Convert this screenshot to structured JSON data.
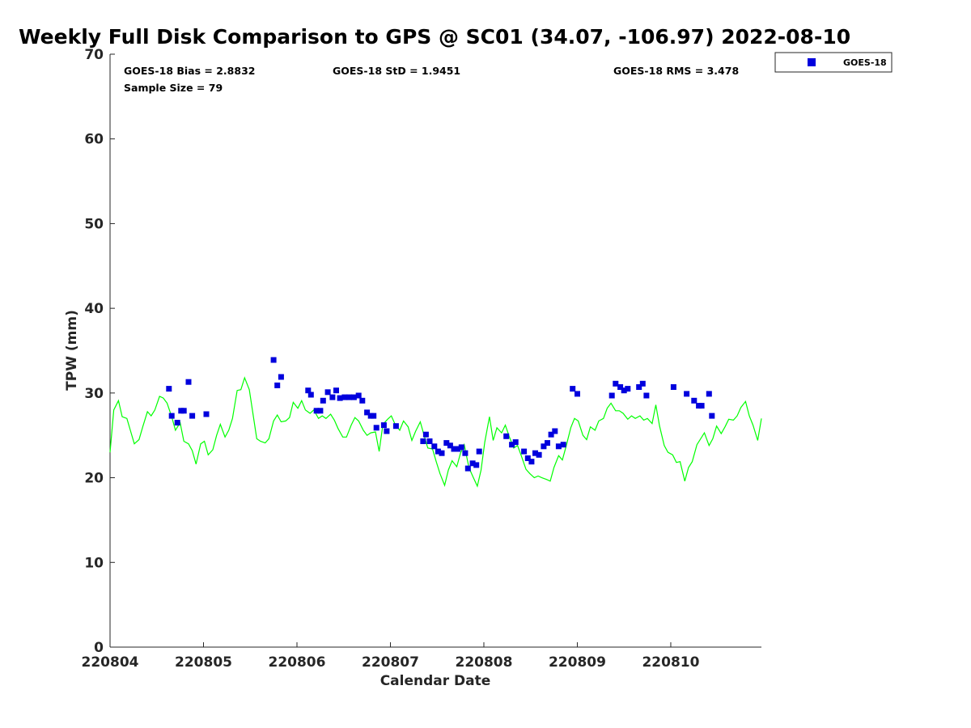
{
  "chart_data": {
    "type": "scatter",
    "title": "Weekly Full Disk Comparison to GPS @ SC01 (34.07, -106.97) 2022-08-10",
    "xlabel": "Calendar Date",
    "ylabel": "TPW (mm)",
    "x_tick_labels": [
      "220804",
      "220805",
      "220806",
      "220807",
      "220808",
      "220809",
      "220810"
    ],
    "x_tick_values": [
      220804,
      220805,
      220806,
      220807,
      220808,
      220809,
      220810
    ],
    "xlim": [
      220804,
      220810.97
    ],
    "ylim": [
      0,
      70
    ],
    "y_ticks": [
      0,
      10,
      20,
      30,
      40,
      50,
      60,
      70
    ],
    "y_tick_labels": [
      "0",
      "10",
      "20",
      "30",
      "40",
      "50",
      "60",
      "70"
    ],
    "grid": false,
    "legend_position": "top-right-outside",
    "stats": {
      "bias": "GOES-18 Bias = 2.8832",
      "std": "GOES-18 StD = 1.9451",
      "rms": "GOES-18 RMS = 3.478",
      "sample": "Sample Size = 79"
    },
    "series": [
      {
        "name": "GOES-18",
        "marker": "square",
        "color": "#0000dd",
        "points": [
          [
            220804.63,
            30.5
          ],
          [
            220804.66,
            27.3
          ],
          [
            220804.72,
            26.5
          ],
          [
            220804.76,
            27.9
          ],
          [
            220804.79,
            27.9
          ],
          [
            220804.84,
            31.3
          ],
          [
            220804.88,
            27.3
          ],
          [
            220805.03,
            27.5
          ],
          [
            220805.75,
            33.9
          ],
          [
            220805.79,
            30.9
          ],
          [
            220805.83,
            31.9
          ],
          [
            220806.12,
            30.3
          ],
          [
            220806.15,
            29.8
          ],
          [
            220806.21,
            27.9
          ],
          [
            220806.25,
            27.9
          ],
          [
            220806.28,
            29.1
          ],
          [
            220806.33,
            30.1
          ],
          [
            220806.38,
            29.5
          ],
          [
            220806.42,
            30.3
          ],
          [
            220806.46,
            29.4
          ],
          [
            220806.51,
            29.5
          ],
          [
            220806.56,
            29.5
          ],
          [
            220806.61,
            29.5
          ],
          [
            220806.66,
            29.7
          ],
          [
            220806.7,
            29.1
          ],
          [
            220806.75,
            27.7
          ],
          [
            220806.79,
            27.3
          ],
          [
            220806.82,
            27.3
          ],
          [
            220806.85,
            25.9
          ],
          [
            220806.93,
            26.2
          ],
          [
            220806.96,
            25.5
          ],
          [
            220807.06,
            26.1
          ],
          [
            220807.35,
            24.3
          ],
          [
            220807.38,
            25.1
          ],
          [
            220807.42,
            24.3
          ],
          [
            220807.47,
            23.7
          ],
          [
            220807.51,
            23.1
          ],
          [
            220807.55,
            22.9
          ],
          [
            220807.6,
            24.1
          ],
          [
            220807.64,
            23.8
          ],
          [
            220807.68,
            23.4
          ],
          [
            220807.72,
            23.4
          ],
          [
            220807.76,
            23.6
          ],
          [
            220807.8,
            22.9
          ],
          [
            220807.83,
            21.1
          ],
          [
            220807.88,
            21.7
          ],
          [
            220807.92,
            21.5
          ],
          [
            220807.95,
            23.1
          ],
          [
            220808.24,
            24.9
          ],
          [
            220808.3,
            23.9
          ],
          [
            220808.34,
            24.2
          ],
          [
            220808.43,
            23.1
          ],
          [
            220808.47,
            22.3
          ],
          [
            220808.51,
            21.9
          ],
          [
            220808.55,
            22.9
          ],
          [
            220808.59,
            22.7
          ],
          [
            220808.64,
            23.7
          ],
          [
            220808.68,
            24.1
          ],
          [
            220808.72,
            25.1
          ],
          [
            220808.76,
            25.5
          ],
          [
            220808.8,
            23.7
          ],
          [
            220808.85,
            23.9
          ],
          [
            220808.95,
            30.5
          ],
          [
            220809.0,
            29.9
          ],
          [
            220809.37,
            29.7
          ],
          [
            220809.41,
            31.1
          ],
          [
            220809.46,
            30.7
          ],
          [
            220809.5,
            30.3
          ],
          [
            220809.54,
            30.5
          ],
          [
            220809.66,
            30.7
          ],
          [
            220809.7,
            31.1
          ],
          [
            220809.74,
            29.7
          ],
          [
            220810.03,
            30.7
          ],
          [
            220810.17,
            29.9
          ],
          [
            220810.25,
            29.1
          ],
          [
            220810.3,
            28.5
          ],
          [
            220810.33,
            28.5
          ],
          [
            220810.41,
            29.9
          ],
          [
            220810.44,
            27.3
          ]
        ]
      },
      {
        "name": "GPS",
        "type": "line",
        "color": "#00ff00",
        "points": [
          [
            220804.0,
            23.0
          ],
          [
            220804.04,
            28.0
          ],
          [
            220804.09,
            29.1
          ],
          [
            220804.13,
            27.2
          ],
          [
            220804.18,
            27.0
          ],
          [
            220804.22,
            25.5
          ],
          [
            220804.26,
            24.0
          ],
          [
            220804.31,
            24.5
          ],
          [
            220804.35,
            26.0
          ],
          [
            220804.4,
            27.8
          ],
          [
            220804.44,
            27.3
          ],
          [
            220804.48,
            28.0
          ],
          [
            220804.53,
            29.6
          ],
          [
            220804.57,
            29.4
          ],
          [
            220804.61,
            28.8
          ],
          [
            220804.66,
            27.2
          ],
          [
            220804.7,
            25.6
          ],
          [
            220804.75,
            26.5
          ],
          [
            220804.79,
            24.3
          ],
          [
            220804.84,
            24.0
          ],
          [
            220804.88,
            23.2
          ],
          [
            220804.92,
            21.6
          ],
          [
            220804.97,
            24.0
          ],
          [
            220805.01,
            24.3
          ],
          [
            220805.05,
            22.7
          ],
          [
            220805.1,
            23.3
          ],
          [
            220805.14,
            25.0
          ],
          [
            220805.18,
            26.3
          ],
          [
            220805.23,
            24.8
          ],
          [
            220805.27,
            25.6
          ],
          [
            220805.31,
            27.0
          ],
          [
            220805.36,
            30.3
          ],
          [
            220805.4,
            30.4
          ],
          [
            220805.44,
            31.8
          ],
          [
            220805.49,
            30.4
          ],
          [
            220805.53,
            27.5
          ],
          [
            220805.57,
            24.6
          ],
          [
            220805.61,
            24.3
          ],
          [
            220805.66,
            24.1
          ],
          [
            220805.7,
            24.6
          ],
          [
            220805.75,
            26.7
          ],
          [
            220805.79,
            27.4
          ],
          [
            220805.83,
            26.6
          ],
          [
            220805.88,
            26.7
          ],
          [
            220805.92,
            27.1
          ],
          [
            220805.96,
            28.9
          ],
          [
            220806.01,
            28.2
          ],
          [
            220806.05,
            29.1
          ],
          [
            220806.09,
            28.0
          ],
          [
            220806.14,
            27.6
          ],
          [
            220806.18,
            28.0
          ],
          [
            220806.23,
            27.0
          ],
          [
            220806.27,
            27.3
          ],
          [
            220806.31,
            27.0
          ],
          [
            220806.36,
            27.5
          ],
          [
            220806.4,
            26.8
          ],
          [
            220806.44,
            25.8
          ],
          [
            220806.49,
            24.8
          ],
          [
            220806.53,
            24.8
          ],
          [
            220806.58,
            26.2
          ],
          [
            220806.62,
            27.1
          ],
          [
            220806.66,
            26.7
          ],
          [
            220806.71,
            25.6
          ],
          [
            220806.75,
            25.0
          ],
          [
            220806.79,
            25.3
          ],
          [
            220806.84,
            25.4
          ],
          [
            220806.88,
            23.1
          ],
          [
            220806.92,
            26.3
          ],
          [
            220806.97,
            26.9
          ],
          [
            220807.01,
            27.3
          ],
          [
            220807.05,
            26.3
          ],
          [
            220807.1,
            25.6
          ],
          [
            220807.14,
            26.7
          ],
          [
            220807.19,
            26.0
          ],
          [
            220807.23,
            24.4
          ],
          [
            220807.27,
            25.5
          ],
          [
            220807.32,
            26.6
          ],
          [
            220807.36,
            25.0
          ],
          [
            220807.4,
            23.5
          ],
          [
            220807.45,
            23.4
          ],
          [
            220807.49,
            21.9
          ],
          [
            220807.53,
            20.5
          ],
          [
            220807.58,
            19.1
          ],
          [
            220807.62,
            20.9
          ],
          [
            220807.66,
            22.0
          ],
          [
            220807.71,
            21.3
          ],
          [
            220807.75,
            22.9
          ],
          [
            220807.79,
            23.9
          ],
          [
            220807.84,
            21.2
          ],
          [
            220807.88,
            20.2
          ],
          [
            220807.93,
            19.0
          ],
          [
            220807.97,
            20.9
          ],
          [
            220808.01,
            24.2
          ],
          [
            220808.06,
            27.2
          ],
          [
            220808.1,
            24.4
          ],
          [
            220808.14,
            25.9
          ],
          [
            220808.19,
            25.3
          ],
          [
            220808.23,
            26.2
          ],
          [
            220808.27,
            24.9
          ],
          [
            220808.32,
            23.5
          ],
          [
            220808.36,
            23.8
          ],
          [
            220808.4,
            22.6
          ],
          [
            220808.45,
            21.0
          ],
          [
            220808.49,
            20.5
          ],
          [
            220808.54,
            20.0
          ],
          [
            220808.58,
            20.2
          ],
          [
            220808.62,
            20.0
          ],
          [
            220808.67,
            19.8
          ],
          [
            220808.71,
            19.6
          ],
          [
            220808.75,
            21.2
          ],
          [
            220808.8,
            22.6
          ],
          [
            220808.84,
            22.1
          ],
          [
            220808.88,
            23.7
          ],
          [
            220808.93,
            25.9
          ],
          [
            220808.97,
            27.0
          ],
          [
            220809.01,
            26.7
          ],
          [
            220809.06,
            25.0
          ],
          [
            220809.1,
            24.5
          ],
          [
            220809.14,
            26.0
          ],
          [
            220809.19,
            25.6
          ],
          [
            220809.23,
            26.7
          ],
          [
            220809.28,
            27.0
          ],
          [
            220809.32,
            28.2
          ],
          [
            220809.36,
            28.8
          ],
          [
            220809.41,
            27.9
          ],
          [
            220809.45,
            27.9
          ],
          [
            220809.49,
            27.6
          ],
          [
            220809.54,
            26.9
          ],
          [
            220809.58,
            27.3
          ],
          [
            220809.62,
            27.0
          ],
          [
            220809.67,
            27.3
          ],
          [
            220809.71,
            26.8
          ],
          [
            220809.75,
            27.0
          ],
          [
            220809.8,
            26.4
          ],
          [
            220809.84,
            28.6
          ],
          [
            220809.88,
            26.1
          ],
          [
            220809.93,
            23.8
          ],
          [
            220809.97,
            23.0
          ],
          [
            220810.02,
            22.7
          ],
          [
            220810.06,
            21.8
          ],
          [
            220810.1,
            21.9
          ],
          [
            220810.15,
            19.6
          ],
          [
            220810.19,
            21.2
          ],
          [
            220810.23,
            21.9
          ],
          [
            220810.28,
            23.9
          ],
          [
            220810.32,
            24.6
          ],
          [
            220810.36,
            25.3
          ],
          [
            220810.41,
            23.8
          ],
          [
            220810.45,
            24.6
          ],
          [
            220810.49,
            26.1
          ],
          [
            220810.54,
            25.2
          ],
          [
            220810.58,
            26.0
          ],
          [
            220810.62,
            26.9
          ],
          [
            220810.67,
            26.8
          ],
          [
            220810.71,
            27.3
          ],
          [
            220810.75,
            28.3
          ],
          [
            220810.8,
            29.0
          ],
          [
            220810.84,
            27.3
          ],
          [
            220810.88,
            26.2
          ],
          [
            220810.93,
            24.4
          ],
          [
            220810.97,
            27.0
          ]
        ]
      }
    ]
  }
}
